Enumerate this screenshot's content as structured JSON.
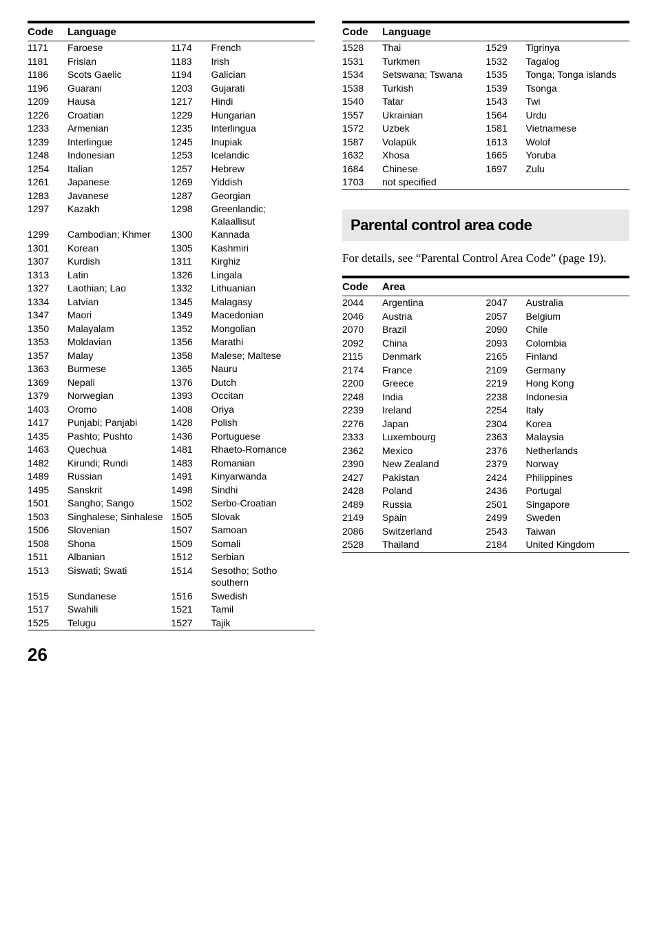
{
  "tableHeader": {
    "code": "Code",
    "lang": "Language",
    "area": "Area"
  },
  "leftTable": [
    [
      "1171",
      "Faroese",
      "1174",
      "French"
    ],
    [
      "1181",
      "Frisian",
      "1183",
      "Irish"
    ],
    [
      "1186",
      "Scots Gaelic",
      "1194",
      "Galician"
    ],
    [
      "1196",
      "Guarani",
      "1203",
      "Gujarati"
    ],
    [
      "1209",
      "Hausa",
      "1217",
      "Hindi"
    ],
    [
      "1226",
      "Croatian",
      "1229",
      "Hungarian"
    ],
    [
      "1233",
      "Armenian",
      "1235",
      "Interlingua"
    ],
    [
      "1239",
      "Interlingue",
      "1245",
      "Inupiak"
    ],
    [
      "1248",
      "Indonesian",
      "1253",
      "Icelandic"
    ],
    [
      "1254",
      "Italian",
      "1257",
      "Hebrew"
    ],
    [
      "1261",
      "Japanese",
      "1269",
      "Yiddish"
    ],
    [
      "1283",
      "Javanese",
      "1287",
      "Georgian"
    ],
    [
      "1297",
      "Kazakh",
      "1298",
      "Greenlandic; Kalaallisut"
    ],
    [
      "1299",
      "Cambodian; Khmer",
      "1300",
      "Kannada"
    ],
    [
      "1301",
      "Korean",
      "1305",
      "Kashmiri"
    ],
    [
      "1307",
      "Kurdish",
      "1311",
      "Kirghiz"
    ],
    [
      "1313",
      "Latin",
      "1326",
      "Lingala"
    ],
    [
      "1327",
      "Laothian; Lao",
      "1332",
      "Lithuanian"
    ],
    [
      "1334",
      "Latvian",
      "1345",
      "Malagasy"
    ],
    [
      "1347",
      "Maori",
      "1349",
      "Macedonian"
    ],
    [
      "1350",
      "Malayalam",
      "1352",
      "Mongolian"
    ],
    [
      "1353",
      "Moldavian",
      "1356",
      "Marathi"
    ],
    [
      "1357",
      "Malay",
      "1358",
      "Malese; Maltese"
    ],
    [
      "1363",
      "Burmese",
      "1365",
      "Nauru"
    ],
    [
      "1369",
      "Nepali",
      "1376",
      "Dutch"
    ],
    [
      "1379",
      "Norwegian",
      "1393",
      "Occitan"
    ],
    [
      "1403",
      "Oromo",
      "1408",
      "Oriya"
    ],
    [
      "1417",
      "Punjabi; Panjabi",
      "1428",
      "Polish"
    ],
    [
      "1435",
      "Pashto; Pushto",
      "1436",
      "Portuguese"
    ],
    [
      "1463",
      "Quechua",
      "1481",
      "Rhaeto-Romance"
    ],
    [
      "1482",
      "Kirundi; Rundi",
      "1483",
      "Romanian"
    ],
    [
      "1489",
      "Russian",
      "1491",
      "Kinyarwanda"
    ],
    [
      "1495",
      "Sanskrit",
      "1498",
      "Sindhi"
    ],
    [
      "1501",
      "Sangho; Sango",
      "1502",
      "Serbo-Croatian"
    ],
    [
      "1503",
      "Singhalese; Sinhalese",
      "1505",
      "Slovak"
    ],
    [
      "1506",
      "Slovenian",
      "1507",
      "Samoan"
    ],
    [
      "1508",
      "Shona",
      "1509",
      "Somali"
    ],
    [
      "1511",
      "Albanian",
      "1512",
      "Serbian"
    ],
    [
      "1513",
      "Siswati; Swati",
      "1514",
      "Sesotho; Sotho southern"
    ],
    [
      "1515",
      "Sundanese",
      "1516",
      "Swedish"
    ],
    [
      "1517",
      "Swahili",
      "1521",
      "Tamil"
    ],
    [
      "1525",
      "Telugu",
      "1527",
      "Tajik"
    ]
  ],
  "rightLangTable": [
    [
      "1528",
      "Thai",
      "1529",
      "Tigrinya"
    ],
    [
      "1531",
      "Turkmen",
      "1532",
      "Tagalog"
    ],
    [
      "1534",
      "Setswana; Tswana",
      "1535",
      "Tonga; Tonga islands"
    ],
    [
      "1538",
      "Turkish",
      "1539",
      "Tsonga"
    ],
    [
      "1540",
      "Tatar",
      "1543",
      "Twi"
    ],
    [
      "1557",
      "Ukrainian",
      "1564",
      "Urdu"
    ],
    [
      "1572",
      "Uzbek",
      "1581",
      "Vietnamese"
    ],
    [
      "1587",
      "Volapük",
      "1613",
      "Wolof"
    ],
    [
      "1632",
      "Xhosa",
      "1665",
      "Yoruba"
    ],
    [
      "1684",
      "Chinese",
      "1697",
      "Zulu"
    ],
    [
      "1703",
      "not specified",
      "",
      ""
    ]
  ],
  "sectionHeading": "Parental control area code",
  "bodyText": "For details, see “Parental Control Area Code” (page 19).",
  "areaTable": [
    [
      "2044",
      "Argentina",
      "2047",
      "Australia"
    ],
    [
      "2046",
      "Austria",
      "2057",
      "Belgium"
    ],
    [
      "2070",
      "Brazil",
      "2090",
      "Chile"
    ],
    [
      "2092",
      "China",
      "2093",
      "Colombia"
    ],
    [
      "2115",
      "Denmark",
      "2165",
      "Finland"
    ],
    [
      "2174",
      "France",
      "2109",
      "Germany"
    ],
    [
      "2200",
      "Greece",
      "2219",
      "Hong Kong"
    ],
    [
      "2248",
      "India",
      "2238",
      "Indonesia"
    ],
    [
      "2239",
      "Ireland",
      "2254",
      "Italy"
    ],
    [
      "2276",
      "Japan",
      "2304",
      "Korea"
    ],
    [
      "2333",
      "Luxembourg",
      "2363",
      "Malaysia"
    ],
    [
      "2362",
      "Mexico",
      "2376",
      "Netherlands"
    ],
    [
      "2390",
      "New Zealand",
      "2379",
      "Norway"
    ],
    [
      "2427",
      "Pakistan",
      "2424",
      "Philippines"
    ],
    [
      "2428",
      "Poland",
      "2436",
      "Portugal"
    ],
    [
      "2489",
      "Russia",
      "2501",
      "Singapore"
    ],
    [
      "2149",
      "Spain",
      "2499",
      "Sweden"
    ],
    [
      "2086",
      "Switzerland",
      "2543",
      "Taiwan"
    ],
    [
      "2528",
      "Thailand",
      "2184",
      "United Kingdom"
    ]
  ],
  "pageNumber": "26"
}
